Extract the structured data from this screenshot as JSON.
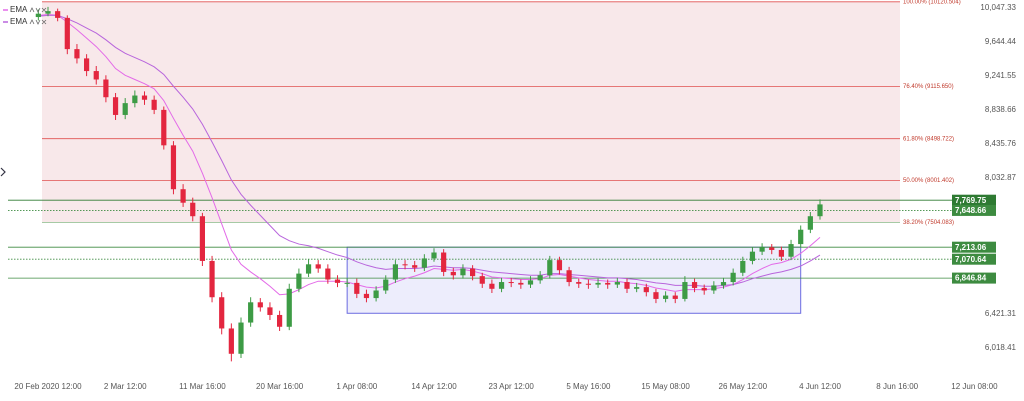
{
  "chart_data": {
    "type": "candlestick",
    "categories": [
      null,
      "20 Feb 2020 12:00",
      null,
      null,
      null,
      null,
      null,
      null,
      null,
      "2 Mar 12:00",
      null,
      null,
      null,
      null,
      null,
      null,
      null,
      "11 Mar 16:00",
      null,
      null,
      null,
      null,
      null,
      null,
      null,
      "20 Mar 16:00",
      null,
      null,
      null,
      null,
      null,
      null,
      null,
      "1 Apr 08:00",
      null,
      null,
      null,
      null,
      null,
      null,
      null,
      "14 Apr 12:00",
      null,
      null,
      null,
      null,
      null,
      null,
      null,
      "23 Apr 12:00",
      null,
      null,
      null,
      null,
      null,
      null,
      null,
      "5 May 16:00",
      null,
      null,
      null,
      null,
      null,
      null,
      null,
      "15 May 08:00",
      null,
      null,
      null,
      null,
      null,
      null,
      null,
      "26 May 12:00",
      null,
      null,
      null,
      null,
      null,
      null,
      null,
      "4 Jun 12:00",
      null,
      null,
      null,
      null,
      null,
      null,
      null,
      "8 Jun 16:00",
      null,
      null,
      null,
      null,
      null,
      null,
      null,
      "12 Jun 08:00",
      null
    ],
    "open": [
      9940,
      9980,
      10010,
      9930,
      9560,
      9450,
      9300,
      9200,
      8990,
      8780,
      8920,
      9010,
      8960,
      8840,
      8420,
      7900,
      7740,
      7580,
      7050,
      6620,
      6250,
      5950,
      6320,
      6560,
      6500,
      6410,
      6270,
      6720,
      6900,
      7010,
      6960,
      6830,
      6790,
      6790,
      6660,
      6610,
      6700,
      6830,
      7010,
      7000,
      6970,
      7080,
      7150,
      6920,
      6880,
      6960,
      6870,
      6780,
      6720,
      6800,
      6790,
      6770,
      6820,
      6880,
      7060,
      6940,
      6800,
      6780,
      6770,
      6790,
      6770,
      6800,
      6720,
      6740,
      6680,
      6600,
      6640,
      6600,
      6800,
      6730,
      6700,
      6760,
      6800,
      6910,
      7050,
      7160,
      7210,
      7180,
      7100,
      7250,
      7420,
      7580,
      null,
      null,
      null,
      null,
      null,
      null,
      null,
      null,
      null,
      null,
      null,
      null,
      null,
      null,
      null,
      null,
      null
    ],
    "high": [
      10030,
      10060,
      10040,
      9960,
      9620,
      9500,
      9360,
      9250,
      9040,
      8980,
      9070,
      9060,
      9010,
      8880,
      8470,
      7960,
      7800,
      7620,
      7110,
      6680,
      6310,
      6380,
      6620,
      6610,
      6560,
      6460,
      6780,
      6960,
      7070,
      7060,
      7010,
      6880,
      6840,
      6840,
      6710,
      6750,
      6880,
      7060,
      7060,
      7050,
      7130,
      7200,
      7190,
      6970,
      7010,
      7000,
      6910,
      6830,
      6850,
      6850,
      6830,
      6870,
      6930,
      7110,
      7100,
      6980,
      6840,
      6830,
      6840,
      6830,
      6850,
      6840,
      6790,
      6780,
      6720,
      6690,
      6680,
      6870,
      6840,
      6770,
      6810,
      6850,
      6960,
      7100,
      7210,
      7260,
      7250,
      7220,
      7300,
      7470,
      7630,
      7780,
      null,
      null,
      null,
      null,
      null,
      null,
      null,
      null,
      null,
      null,
      null,
      null,
      null,
      null,
      null,
      null,
      null
    ],
    "low": [
      9900,
      9950,
      9890,
      9500,
      9390,
      9240,
      9140,
      8930,
      8720,
      8730,
      8870,
      8900,
      8790,
      8370,
      7840,
      7690,
      7520,
      6990,
      6560,
      6180,
      5860,
      5900,
      6270,
      6450,
      6350,
      6220,
      6230,
      6680,
      6860,
      6910,
      6780,
      6740,
      6740,
      6610,
      6560,
      6570,
      6660,
      6790,
      6950,
      6920,
      6930,
      7040,
      6870,
      6830,
      6840,
      6820,
      6730,
      6670,
      6680,
      6740,
      6720,
      6730,
      6780,
      6840,
      6890,
      6750,
      6730,
      6720,
      6730,
      6720,
      6730,
      6670,
      6680,
      6630,
      6550,
      6560,
      6550,
      6570,
      6680,
      6650,
      6660,
      6720,
      6760,
      6870,
      7010,
      7120,
      7130,
      7050,
      7060,
      7210,
      7380,
      7540,
      null,
      null,
      null,
      null,
      null,
      null,
      null,
      null,
      null,
      null,
      null,
      null,
      null,
      null,
      null,
      null,
      null
    ],
    "close": [
      9980,
      10010,
      9930,
      9560,
      9450,
      9300,
      9200,
      8990,
      8780,
      8920,
      9010,
      8960,
      8840,
      8420,
      7900,
      7740,
      7580,
      7050,
      6620,
      6250,
      5950,
      6320,
      6560,
      6500,
      6410,
      6270,
      6720,
      6900,
      7010,
      6960,
      6830,
      6790,
      6790,
      6660,
      6610,
      6700,
      6830,
      7010,
      7000,
      6970,
      7080,
      7150,
      6920,
      6880,
      6960,
      6870,
      6780,
      6720,
      6800,
      6790,
      6770,
      6820,
      6880,
      7060,
      6940,
      6800,
      6780,
      6770,
      6790,
      6770,
      6800,
      6720,
      6740,
      6680,
      6600,
      6640,
      6600,
      6800,
      6730,
      6700,
      6760,
      6800,
      6910,
      7050,
      7160,
      7210,
      7180,
      7100,
      7250,
      7420,
      7580,
      7720,
      null,
      null,
      null,
      null,
      null,
      null,
      null,
      null,
      null,
      null,
      null,
      null,
      null,
      null,
      null,
      null,
      null
    ],
    "up_color": "#3d9b45",
    "down_color": "#e3263f",
    "series": [
      {
        "name": "EMA",
        "color": "#e36ae8",
        "values": [
          9960,
          9970,
          9962,
          9880,
          9790,
          9690,
          9590,
          9470,
          9330,
          9250,
          9200,
          9150,
          9090,
          8950,
          8740,
          8540,
          8350,
          8090,
          7800,
          7490,
          7180,
          7010,
          6920,
          6840,
          6750,
          6650,
          6660,
          6710,
          6770,
          6810,
          6810,
          6810,
          6800,
          6770,
          6740,
          6730,
          6750,
          6800,
          6840,
          6870,
          6910,
          6960,
          6950,
          6940,
          6950,
          6930,
          6900,
          6860,
          6850,
          6840,
          6830,
          6830,
          6840,
          6880,
          6890,
          6870,
          6850,
          6830,
          6820,
          6810,
          6810,
          6790,
          6780,
          6760,
          6730,
          6710,
          6690,
          6710,
          6710,
          6710,
          6720,
          6740,
          6770,
          6830,
          6900,
          6960,
          7010,
          7030,
          7070,
          7140,
          7230,
          7330,
          null,
          null,
          null,
          null,
          null,
          null,
          null,
          null,
          null,
          null,
          null,
          null,
          null,
          null,
          null,
          null,
          null
        ]
      },
      {
        "name": "EMA",
        "color": "#b865dc",
        "values": [
          9950,
          9960,
          9960,
          9920,
          9870,
          9810,
          9750,
          9670,
          9580,
          9510,
          9460,
          9410,
          9350,
          9260,
          9120,
          8990,
          8850,
          8670,
          8460,
          8240,
          8010,
          7840,
          7710,
          7590,
          7470,
          7350,
          7290,
          7250,
          7230,
          7200,
          7160,
          7120,
          7090,
          7040,
          7000,
          6970,
          6950,
          6960,
          6960,
          6960,
          6970,
          6990,
          6980,
          6970,
          6970,
          6960,
          6940,
          6920,
          6910,
          6900,
          6890,
          6880,
          6880,
          6900,
          6900,
          6890,
          6880,
          6870,
          6860,
          6850,
          6850,
          6840,
          6830,
          6810,
          6790,
          6780,
          6760,
          6760,
          6760,
          6750,
          6750,
          6760,
          6770,
          6800,
          6840,
          6870,
          6900,
          6920,
          6950,
          6990,
          7050,
          7120,
          null,
          null,
          null,
          null,
          null,
          null,
          null,
          null,
          null,
          null,
          null,
          null,
          null,
          null,
          null,
          null,
          null
        ]
      }
    ],
    "ylim": [
      5663,
      10142
    ],
    "yticks": [
      {
        "value": 10047.33,
        "label": "10,047.33"
      },
      {
        "value": 9644.44,
        "label": "9,644.44"
      },
      {
        "value": 9241.55,
        "label": "9,241.55"
      },
      {
        "value": 8838.66,
        "label": "8,838.66"
      },
      {
        "value": 8435.76,
        "label": "8,435.76"
      },
      {
        "value": 8032.87,
        "label": "8,032.87"
      },
      {
        "value": 6421.31,
        "label": "6,421.31"
      },
      {
        "value": 6018.41,
        "label": "6,018.41"
      }
    ],
    "fib_levels": [
      {
        "value": 10120.504,
        "label": "100.00% (10120.504)"
      },
      {
        "value": 9115.65,
        "label": "76.40% (9115.650)"
      },
      {
        "value": 8498.722,
        "label": "61.80% (8498.722)"
      },
      {
        "value": 8001.402,
        "label": "50.00% (8001.402)"
      },
      {
        "value": 7504.083,
        "label": "38.20% (7504.083)"
      }
    ],
    "levels": [
      {
        "value": 7769.75,
        "label": "7,769.75",
        "style": "solid",
        "color": "#2e7a32"
      },
      {
        "value": 7648.66,
        "label": "7,648.66",
        "style": "dotted",
        "color": "#3d8b40"
      },
      {
        "value": 7213.06,
        "label": "7,213.06",
        "style": "solid",
        "color": "#3d8b40"
      },
      {
        "value": 7070.64,
        "label": "7,070.64",
        "style": "dotted",
        "color": "#3d8b40"
      },
      {
        "value": 6846.84,
        "label": "6,846.84",
        "style": "solid",
        "color": "#3d8b40"
      }
    ],
    "box": {
      "xlim": [
        32,
        79
      ],
      "ylim": [
        6430,
        7213.06
      ]
    },
    "grid": false
  }
}
